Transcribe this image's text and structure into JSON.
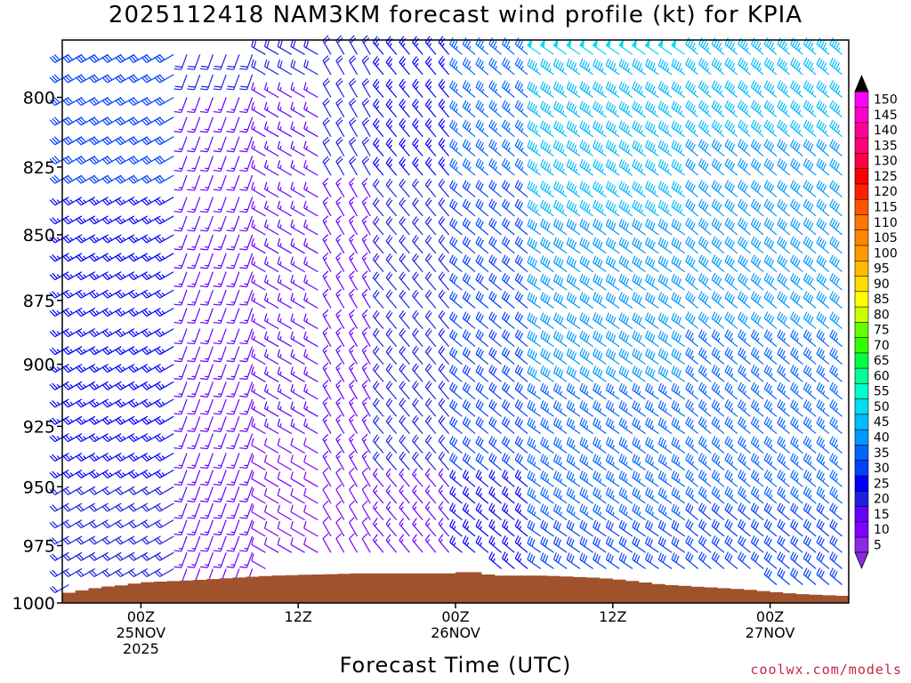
{
  "title": "2025112418 NAM3KM forecast wind profile (kt) for KPIA",
  "credit": "coolwx.com/models",
  "chart_data": {
    "type": "wind-barb-time-height",
    "xlabel": "Forecast Time (UTC)",
    "ylabel": "",
    "units": "kt",
    "x_range_hours": [
      -6,
      54
    ],
    "x_start_hour": -6,
    "x_ticks": [
      {
        "hour": 0,
        "lines": [
          "00Z",
          "25NOV",
          "2025"
        ]
      },
      {
        "hour": 12,
        "lines": [
          "12Z"
        ]
      },
      {
        "hour": 24,
        "lines": [
          "00Z",
          "26NOV"
        ]
      },
      {
        "hour": 36,
        "lines": [
          "12Z"
        ]
      },
      {
        "hour": 48,
        "lines": [
          "00Z",
          "27NOV"
        ]
      }
    ],
    "y_range_hpa": [
      1000,
      780
    ],
    "y_ticks": [
      800,
      825,
      850,
      875,
      900,
      925,
      950,
      975,
      1000
    ],
    "levels_hpa": [
      785,
      792,
      800,
      807,
      814,
      821,
      828,
      836,
      843,
      850,
      857,
      864,
      871,
      878,
      886,
      893,
      900,
      907,
      914,
      921,
      928,
      936,
      943,
      950,
      957,
      964,
      971,
      978,
      985,
      992
    ],
    "legend": {
      "levels": [
        5,
        10,
        15,
        20,
        25,
        30,
        35,
        40,
        45,
        50,
        55,
        60,
        65,
        70,
        75,
        80,
        85,
        90,
        95,
        100,
        105,
        110,
        115,
        120,
        125,
        130,
        135,
        140,
        145,
        150
      ],
      "colors": [
        "#8a2be2",
        "#7f00ff",
        "#6600ff",
        "#2020e0",
        "#0000ff",
        "#0040ff",
        "#0066ff",
        "#0099ff",
        "#00bbff",
        "#00ddee",
        "#00ffcc",
        "#00ff99",
        "#00ff44",
        "#33ff00",
        "#66ff00",
        "#ccff00",
        "#ffff00",
        "#ffdd00",
        "#ffbb00",
        "#ff9900",
        "#ff8800",
        "#ff7700",
        "#ff5500",
        "#ff2200",
        "#ff0000",
        "#ff0044",
        "#ff0077",
        "#ff0099",
        "#ff00cc",
        "#ff00ff"
      ]
    },
    "surface_pressure": [
      {
        "hour": -6,
        "p": 996
      },
      {
        "hour": -5,
        "p": 995
      },
      {
        "hour": -4,
        "p": 994
      },
      {
        "hour": -3,
        "p": 993
      },
      {
        "hour": -1,
        "p": 992
      },
      {
        "hour": 0,
        "p": 991
      },
      {
        "hour": 4,
        "p": 990
      },
      {
        "hour": 7,
        "p": 989
      },
      {
        "hour": 10,
        "p": 988
      },
      {
        "hour": 17,
        "p": 987
      },
      {
        "hour": 24,
        "p": 987
      },
      {
        "hour": 25,
        "p": 986
      },
      {
        "hour": 26,
        "p": 987
      },
      {
        "hour": 27,
        "p": 988
      },
      {
        "hour": 31,
        "p": 988
      },
      {
        "hour": 35,
        "p": 989
      },
      {
        "hour": 37,
        "p": 990
      },
      {
        "hour": 40,
        "p": 992
      },
      {
        "hour": 43,
        "p": 993
      },
      {
        "hour": 46,
        "p": 994
      },
      {
        "hour": 48,
        "p": 995
      },
      {
        "hour": 50,
        "p": 996
      },
      {
        "hour": 54,
        "p": 997
      }
    ],
    "ground_color": "#a0522d",
    "wind_segments": [
      {
        "from_hour": -6,
        "to_hour": 3,
        "direction_deg": 240,
        "speed_lower_kt": 20,
        "speed_upper_kt": 30
      },
      {
        "from_hour": 3,
        "to_hour": 9,
        "direction_deg": 200,
        "speed_lower_kt": 12,
        "speed_upper_kt": 18
      },
      {
        "from_hour": 9,
        "to_hour": 14,
        "direction_deg": 300,
        "speed_lower_kt": 10,
        "speed_upper_kt": 18
      },
      {
        "from_hour": 14,
        "to_hour": 18,
        "direction_deg": 330,
        "speed_lower_kt": 10,
        "speed_upper_kt": 20
      },
      {
        "from_hour": 18,
        "to_hour": 24,
        "direction_deg": 320,
        "speed_lower_kt": 15,
        "speed_upper_kt": 25
      },
      {
        "from_hour": 24,
        "to_hour": 30,
        "direction_deg": 310,
        "speed_lower_kt": 25,
        "speed_upper_kt": 35
      },
      {
        "from_hour": 30,
        "to_hour": 42,
        "direction_deg": 305,
        "speed_lower_kt": 30,
        "speed_upper_kt": 48
      },
      {
        "from_hour": 42,
        "to_hour": 54,
        "direction_deg": 310,
        "speed_lower_kt": 30,
        "speed_upper_kt": 45
      }
    ]
  }
}
